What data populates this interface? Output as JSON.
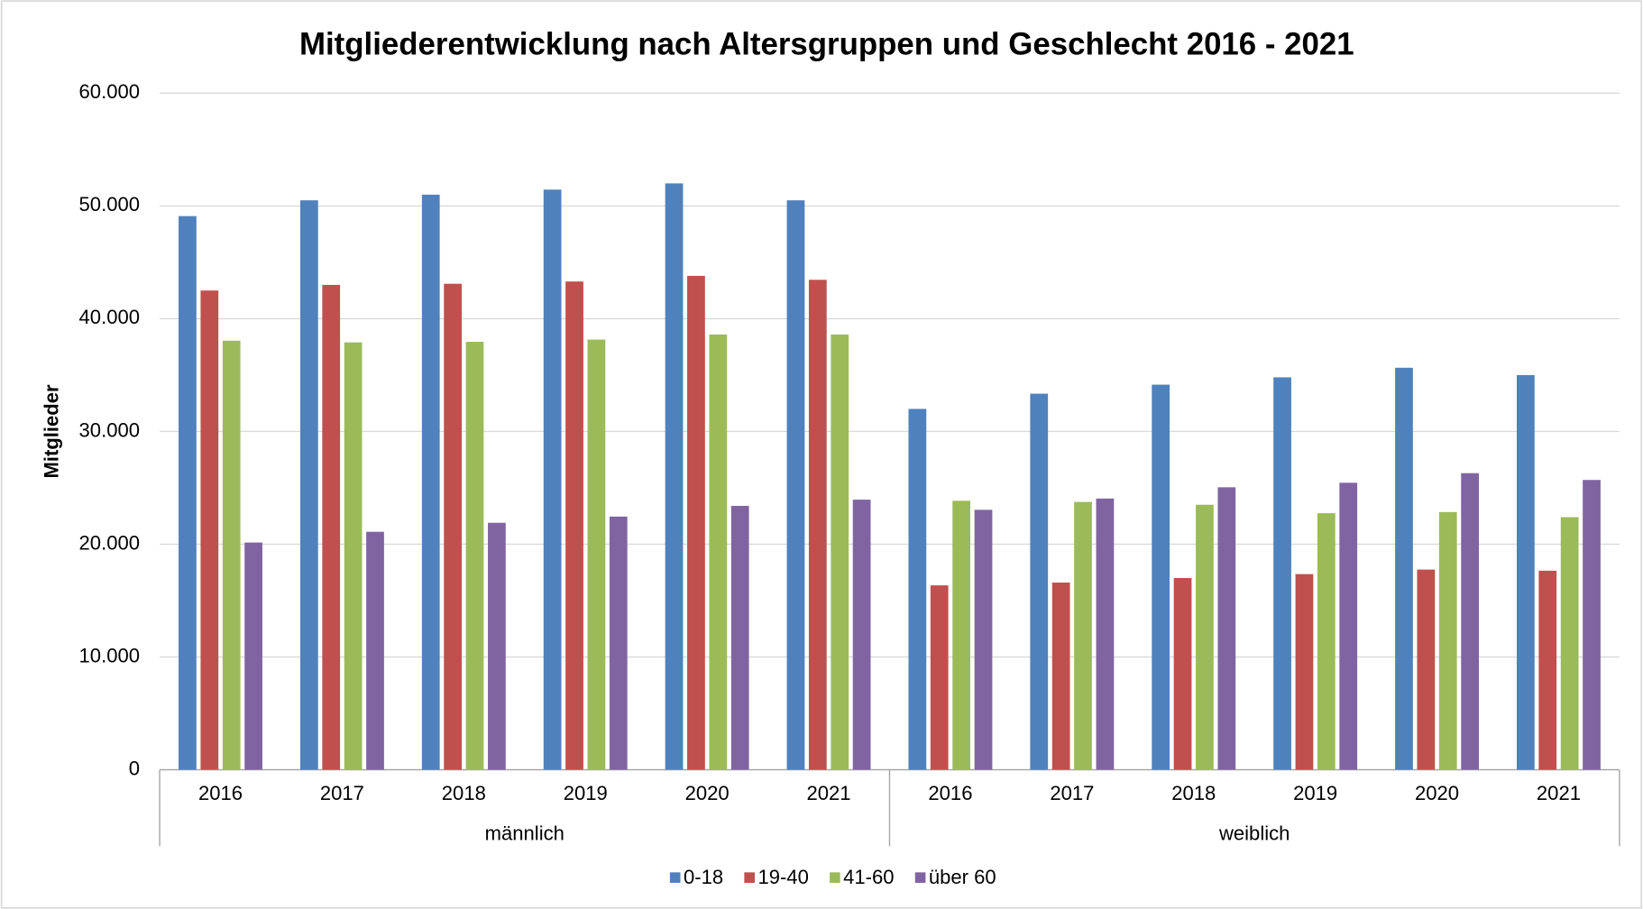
{
  "chart_data": {
    "type": "bar",
    "title": "Mitgliederentwicklung nach Altersgruppen und Geschlecht 2016 - 2021",
    "y_label": "Mitglieder",
    "categories": [
      "2016",
      "2017",
      "2018",
      "2019",
      "2020",
      "2021",
      "2016",
      "2017",
      "2018",
      "2019",
      "2020",
      "2021"
    ],
    "groups": [
      "männlich",
      "weiblich"
    ],
    "series": [
      {
        "name": "0-18",
        "color": "#4f81bd",
        "values": [
          49100,
          50500,
          51000,
          51450,
          52000,
          50500,
          32000,
          33350,
          34150,
          34800,
          35650,
          35000
        ]
      },
      {
        "name": "19-40",
        "color": "#c0504d",
        "values": [
          42500,
          43000,
          43100,
          43300,
          43800,
          43450,
          16350,
          16600,
          17000,
          17350,
          17750,
          17650
        ]
      },
      {
        "name": "41-60",
        "color": "#9bbb59",
        "values": [
          38050,
          37900,
          37950,
          38150,
          38600,
          38600,
          23850,
          23750,
          23500,
          22750,
          22850,
          22400
        ]
      },
      {
        "name": "über 60",
        "color": "#8064a2",
        "values": [
          20150,
          21100,
          21900,
          22450,
          23400,
          23950,
          23050,
          24050,
          25050,
          25450,
          26300,
          25700
        ]
      }
    ],
    "ylim": [
      0,
      60000
    ],
    "yticks": [
      0,
      {
        "value": 10000,
        "label": "10.000"
      },
      {
        "value": 20000,
        "label": "20.000"
      },
      {
        "value": 30000,
        "label": "30.000"
      },
      {
        "value": 40000,
        "label": "40.000"
      },
      {
        "value": 50000,
        "label": "50.000"
      },
      {
        "value": 60000,
        "label": "60.000"
      }
    ],
    "grid": true,
    "legend": "bottom"
  }
}
